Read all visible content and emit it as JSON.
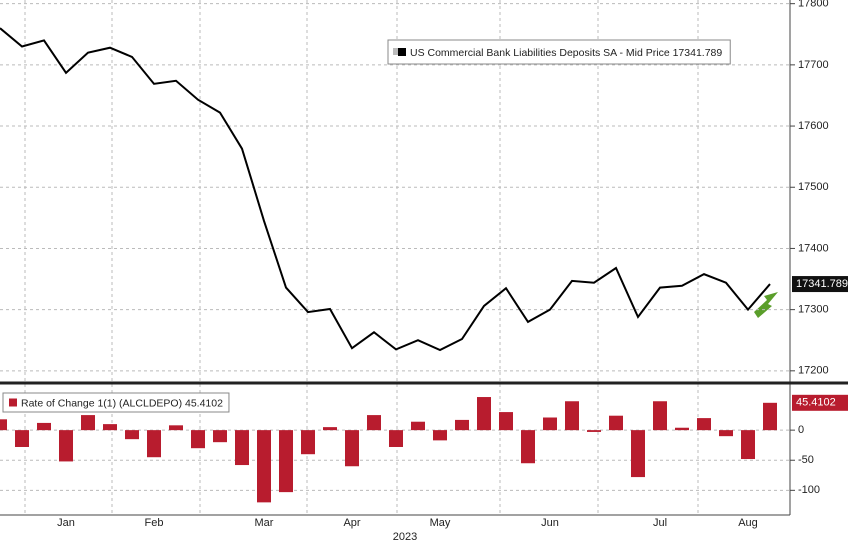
{
  "chart_data": [
    {
      "type": "line",
      "series": [
        {
          "name": "US Commercial Bank Liabilities Deposits SA - Mid Price 17341.789",
          "color": "#000000",
          "values": [
            17760,
            17730,
            17740,
            17687,
            17720,
            17728,
            17713,
            17669,
            17674,
            17643,
            17622,
            17563,
            17445,
            17336,
            17296,
            17301,
            17237,
            17263,
            17235,
            17250,
            17234,
            17252,
            17306,
            17335,
            17280,
            17300,
            17347,
            17344,
            17368,
            17288,
            17336,
            17339,
            17358,
            17344,
            17300,
            17341.789
          ]
        }
      ],
      "ylim": [
        17185,
        17806
      ],
      "yticks": [
        17200,
        17300,
        17400,
        17500,
        17600,
        17700,
        17800
      ],
      "grid": true
    },
    {
      "type": "bar",
      "series": [
        {
          "name": "Rate of Change 1(1) (ALCLDEPO) 45.4102",
          "color": "#b81c2e",
          "values": [
            18,
            -28,
            12,
            -52,
            25,
            10,
            -15,
            -45,
            8,
            -30,
            -20,
            -58,
            -120,
            -103,
            -40,
            5,
            -60,
            25,
            -28,
            14,
            -17,
            17,
            55,
            30,
            -55,
            21,
            48,
            -3,
            24,
            -78,
            48,
            4,
            20,
            -10,
            -48,
            45.4102
          ]
        }
      ],
      "categories": [
        null,
        null,
        null,
        "Jan",
        null,
        null,
        null,
        "Feb",
        null,
        null,
        null,
        null,
        "Mar",
        null,
        null,
        null,
        "Apr",
        null,
        null,
        null,
        "May",
        null,
        null,
        null,
        null,
        "Jun",
        null,
        null,
        null,
        null,
        "Jul",
        null,
        null,
        null,
        "Aug",
        null
      ],
      "xlabel": "2023",
      "ylim": [
        -141,
        75
      ],
      "yticks": [
        0,
        -50,
        -100
      ],
      "grid": true
    }
  ]
}
